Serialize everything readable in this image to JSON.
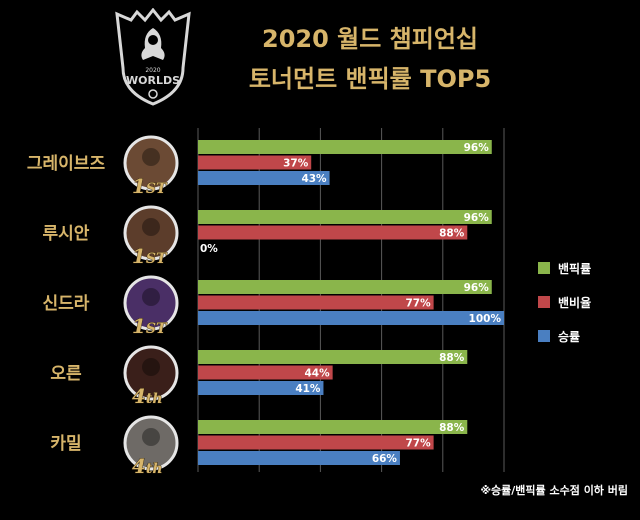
{
  "header": {
    "logo_text": "WORLDS",
    "logo_year": "2020",
    "title_line1": "2020 월드 챔피언십",
    "title_line2": "토너먼트  밴픽률 TOP5"
  },
  "footnote": "※승률/밴픽률 소수점 이하 버림",
  "colors": {
    "background": "#000000",
    "title": "#d7b56a",
    "pickban": "#8ab54b",
    "ban": "#c0474a",
    "win": "#4a7fc1",
    "grid": "#5a5a5a"
  },
  "chart_data": {
    "type": "bar",
    "orientation": "horizontal",
    "title": "2020 월드 챔피언십 토너먼트  밴픽률 TOP5",
    "categories": [
      "그레이브즈",
      "루시안",
      "신드라",
      "오른",
      "카밀"
    ],
    "ranks": [
      {
        "num": "1",
        "suffix": "ST"
      },
      {
        "num": "1",
        "suffix": "ST"
      },
      {
        "num": "1",
        "suffix": "ST"
      },
      {
        "num": "4",
        "suffix": "th"
      },
      {
        "num": "4",
        "suffix": "th"
      }
    ],
    "series": [
      {
        "name": "밴픽률",
        "color": "#8ab54b",
        "values": [
          96,
          96,
          96,
          88,
          88
        ],
        "labels": [
          "96%",
          "96%",
          "96%",
          "88%",
          "88%"
        ]
      },
      {
        "name": "밴비율",
        "color": "#c0474a",
        "values": [
          37,
          88,
          77,
          44,
          77
        ],
        "labels": [
          "37%",
          "88%",
          "77%",
          "44%",
          "77%"
        ]
      },
      {
        "name": "승률",
        "color": "#4a7fc1",
        "values": [
          43,
          0,
          100,
          41,
          66
        ],
        "labels": [
          "43%",
          "0%",
          "100%",
          "41%",
          "66%"
        ]
      }
    ],
    "xlim": [
      0,
      100
    ],
    "grid": true,
    "legend_position": "right"
  }
}
